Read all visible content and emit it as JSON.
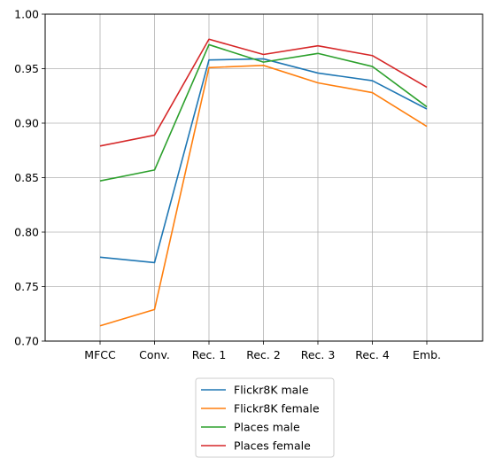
{
  "chart_data": {
    "type": "line",
    "title": "",
    "xlabel": "",
    "ylabel": "",
    "categories": [
      "MFCC",
      "Conv.",
      "Rec. 1",
      "Rec. 2",
      "Rec. 3",
      "Rec. 4",
      "Emb."
    ],
    "ylim": [
      0.7,
      1.0
    ],
    "yticks": [
      "0.70",
      "0.75",
      "0.80",
      "0.85",
      "0.90",
      "0.95",
      "1.00"
    ],
    "grid": true,
    "legend_position": "bottom-center",
    "series": [
      {
        "name": "Flickr8K male",
        "color": "#1f77b4",
        "values": [
          0.777,
          0.772,
          0.958,
          0.959,
          0.946,
          0.939,
          0.913
        ]
      },
      {
        "name": "Flickr8K female",
        "color": "#ff7f0e",
        "values": [
          0.714,
          0.729,
          0.951,
          0.953,
          0.937,
          0.928,
          0.897
        ]
      },
      {
        "name": "Places male",
        "color": "#2ca02c",
        "values": [
          0.847,
          0.857,
          0.972,
          0.956,
          0.964,
          0.952,
          0.915
        ]
      },
      {
        "name": "Places female",
        "color": "#d62728",
        "values": [
          0.879,
          0.889,
          0.977,
          0.963,
          0.971,
          0.962,
          0.933
        ]
      }
    ]
  }
}
